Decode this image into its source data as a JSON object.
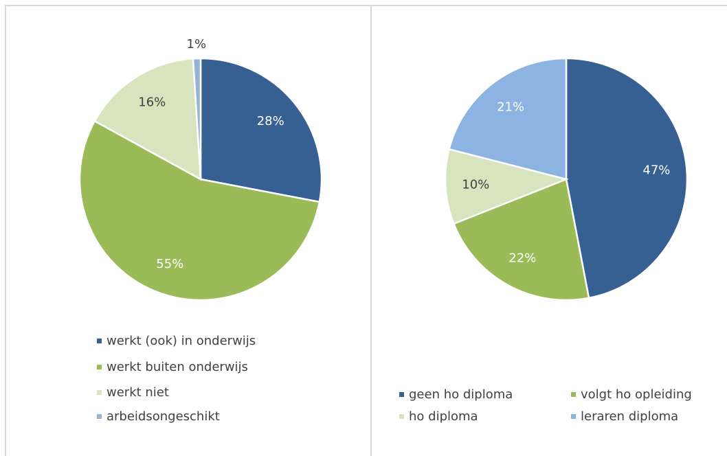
{
  "chart_data": [
    {
      "type": "pie",
      "categories": [
        "werkt (ook) in onderwijs",
        "werkt buiten onderwijs",
        "werkt niet",
        "arbeidsongeschikt"
      ],
      "values": [
        28,
        55,
        16,
        1
      ],
      "value_labels": [
        "28%",
        "55%",
        "16%",
        "1%"
      ],
      "colors": [
        "#376092",
        "#9bbb59",
        "#d7e4bd",
        "#95b3d7"
      ],
      "legend": "bottom"
    },
    {
      "type": "pie",
      "categories": [
        "geen ho diploma",
        "volgt ho opleiding",
        "ho diploma",
        "leraren diploma"
      ],
      "values": [
        47,
        22,
        10,
        21
      ],
      "value_labels": [
        "47%",
        "22%",
        "10%",
        "21%"
      ],
      "colors": [
        "#376092",
        "#9bbb59",
        "#d7e4bd",
        "#8db3e2"
      ],
      "legend": "bottom"
    }
  ]
}
